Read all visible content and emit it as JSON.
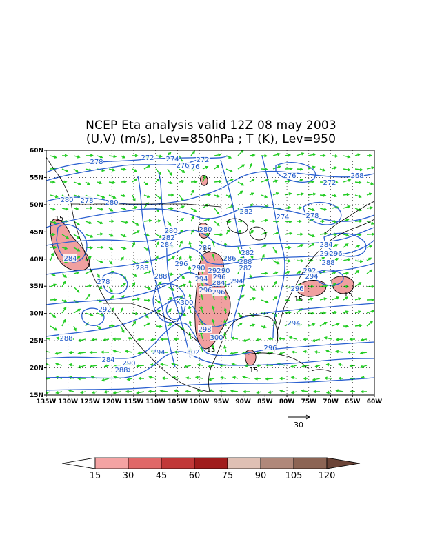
{
  "title": {
    "line1": "NCEP Eta analysis valid 12Z 08 may 2003",
    "line2": "(U,V) (m/s), Lev=850hPa ; T (K), Lev=950"
  },
  "map": {
    "lat_labels": [
      "60N",
      "55N",
      "50N",
      "45N",
      "40N",
      "35N",
      "30N",
      "25N",
      "20N",
      "15N"
    ],
    "lon_labels": [
      "135W",
      "130W",
      "125W",
      "120W",
      "115W",
      "110W",
      "105W",
      "100W",
      "95W",
      "90W",
      "85W",
      "80W",
      "75W",
      "70W",
      "65W",
      "60W"
    ],
    "contour_labels": [
      "278",
      "274",
      "272",
      "276",
      "272",
      "268",
      "272",
      "276",
      "280",
      "280",
      "278",
      "282",
      "274",
      "276",
      "278",
      "286",
      "288",
      "284",
      "278",
      "280",
      "282",
      "284",
      "280",
      "282",
      "286",
      "288",
      "282",
      "290",
      "284",
      "288",
      "292",
      "296",
      "294",
      "296",
      "280",
      "292",
      "294",
      "296",
      "282",
      "290",
      "294",
      "300",
      "296",
      "298",
      "300",
      "302",
      "296",
      "294",
      "290",
      "284",
      "286",
      "288",
      "288",
      "292",
      "294",
      "296",
      "290",
      "296",
      "284",
      "288"
    ],
    "region_labels": [
      "15",
      "15",
      "15",
      "15",
      "15",
      "15"
    ]
  },
  "vector_reference": {
    "value": "30"
  },
  "colorbar": {
    "labels": [
      "15",
      "30",
      "45",
      "60",
      "75",
      "90",
      "105",
      "120"
    ],
    "colors": [
      "#ffffff",
      "#f4a3a3",
      "#e06868",
      "#c13838",
      "#a01c1c",
      "#dfc0b4",
      "#b0887a",
      "#8c6454",
      "#6b4437"
    ]
  },
  "colors": {
    "contour": "#2a5fd0",
    "contour_label": "#1a55c8",
    "vector": "#22cc22",
    "shade": "#f0a0a0",
    "coast": "#000000"
  }
}
